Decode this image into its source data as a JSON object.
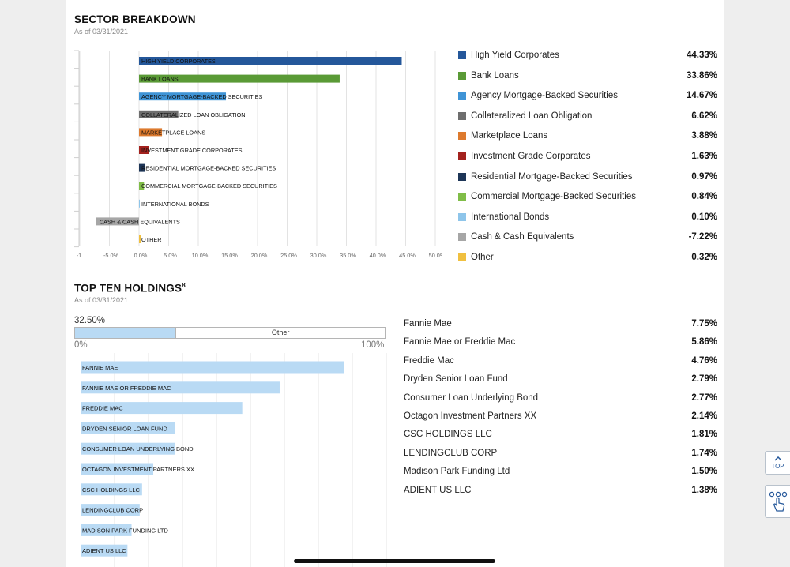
{
  "sector": {
    "title": "SECTOR BREAKDOWN",
    "as_of": "As of 03/31/2021",
    "axis_ticks": [
      "-1...",
      "-5.0%",
      "0.0%",
      "5.0%",
      "10.0%",
      "15.0%",
      "20.0%",
      "25.0%",
      "30.0%",
      "35.0%",
      "40.0%",
      "45.0%",
      "50.0%"
    ]
  },
  "chart_data": [
    {
      "type": "bar",
      "orientation": "horizontal",
      "title": "SECTOR BREAKDOWN",
      "xlim": [
        -10,
        50
      ],
      "categories": [
        "HIGH YIELD CORPORATES",
        "BANK LOANS",
        "AGENCY MORTGAGE-BACKED SECURITIES",
        "COLLATERALIZED LOAN OBLIGATION",
        "MARKETPLACE LOANS",
        "INVESTMENT GRADE CORPORATES",
        "RESIDENTIAL MORTGAGE-BACKED SECURITIES",
        "COMMERCIAL MORTGAGE-BACKED SECURITIES",
        "INTERNATIONAL BONDS",
        "CASH & CASH EQUIVALENTS",
        "OTHER"
      ],
      "values": [
        44.33,
        33.86,
        14.67,
        6.62,
        3.88,
        1.63,
        0.97,
        0.84,
        0.1,
        -7.22,
        0.32
      ],
      "colors": [
        "#24579a",
        "#5a9a36",
        "#3f94d6",
        "#6e6e6e",
        "#dd7a2e",
        "#a3221e",
        "#1d3557",
        "#80bd48",
        "#8ec5ea",
        "#a6a6a6",
        "#f0c040"
      ]
    },
    {
      "type": "bar",
      "orientation": "horizontal",
      "title": "TOP TEN HOLDINGS",
      "xlim": [
        0,
        10
      ],
      "categories": [
        "FANNIE MAE",
        "FANNIE MAE OR FREDDIE MAC",
        "FREDDIE MAC",
        "DRYDEN SENIOR LOAN FUND",
        "CONSUMER LOAN UNDERLYING BOND",
        "OCTAGON INVESTMENT PARTNERS XX",
        "CSC HOLDINGS LLC",
        "LENDINGCLUB CORP",
        "MADISON PARK FUNDING LTD",
        "ADIENT US LLC"
      ],
      "values": [
        7.75,
        5.86,
        4.76,
        2.79,
        2.77,
        2.14,
        1.81,
        1.74,
        1.5,
        1.38
      ],
      "colors": [
        "#b9daf4"
      ]
    }
  ],
  "sector_legend": [
    {
      "name": "High Yield Corporates",
      "value": "44.33%",
      "color": "#24579a"
    },
    {
      "name": "Bank Loans",
      "value": "33.86%",
      "color": "#5a9a36"
    },
    {
      "name": "Agency Mortgage-Backed Securities",
      "value": "14.67%",
      "color": "#3f94d6"
    },
    {
      "name": "Collateralized Loan Obligation",
      "value": "6.62%",
      "color": "#6e6e6e"
    },
    {
      "name": "Marketplace Loans",
      "value": "3.88%",
      "color": "#dd7a2e"
    },
    {
      "name": "Investment Grade Corporates",
      "value": "1.63%",
      "color": "#a3221e"
    },
    {
      "name": "Residential Mortgage-Backed Securities",
      "value": "0.97%",
      "color": "#1d3557"
    },
    {
      "name": "Commercial Mortgage-Backed Securities",
      "value": "0.84%",
      "color": "#80bd48"
    },
    {
      "name": "International Bonds",
      "value": "0.10%",
      "color": "#8ec5ea"
    },
    {
      "name": "Cash & Cash Equivalents",
      "value": "-7.22%",
      "color": "#a6a6a6"
    },
    {
      "name": "Other",
      "value": "0.32%",
      "color": "#f0c040"
    }
  ],
  "holdings": {
    "title": "TOP TEN HOLDINGS",
    "footnote": "8",
    "as_of": "As of 03/31/2021",
    "concentration": {
      "value_label": "32.50%",
      "fraction": 0.325,
      "other_label": "Other",
      "min_label": "0%",
      "max_label": "100%"
    },
    "items": [
      {
        "name": "Fannie Mae",
        "value": "7.75%"
      },
      {
        "name": "Fannie Mae or Freddie Mac",
        "value": "5.86%"
      },
      {
        "name": "Freddie Mac",
        "value": "4.76%"
      },
      {
        "name": "Dryden Senior Loan Fund",
        "value": "2.79%"
      },
      {
        "name": "Consumer Loan Underlying Bond",
        "value": "2.77%"
      },
      {
        "name": "Octagon Investment Partners XX",
        "value": "2.14%"
      },
      {
        "name": "CSC HOLDINGS LLC",
        "value": "1.81%"
      },
      {
        "name": "LENDINGCLUB CORP",
        "value": "1.74%"
      },
      {
        "name": "Madison Park Funding Ltd",
        "value": "1.50%"
      },
      {
        "name": "ADIENT US LLC",
        "value": "1.38%"
      }
    ]
  },
  "side": {
    "top_label": "TOP",
    "top_icon": "chevron-up-icon",
    "compare_icon": "hand-pointer-icon"
  },
  "colors": {
    "accent_border": "#b9c2cc",
    "bar_light": "#b9daf4"
  }
}
